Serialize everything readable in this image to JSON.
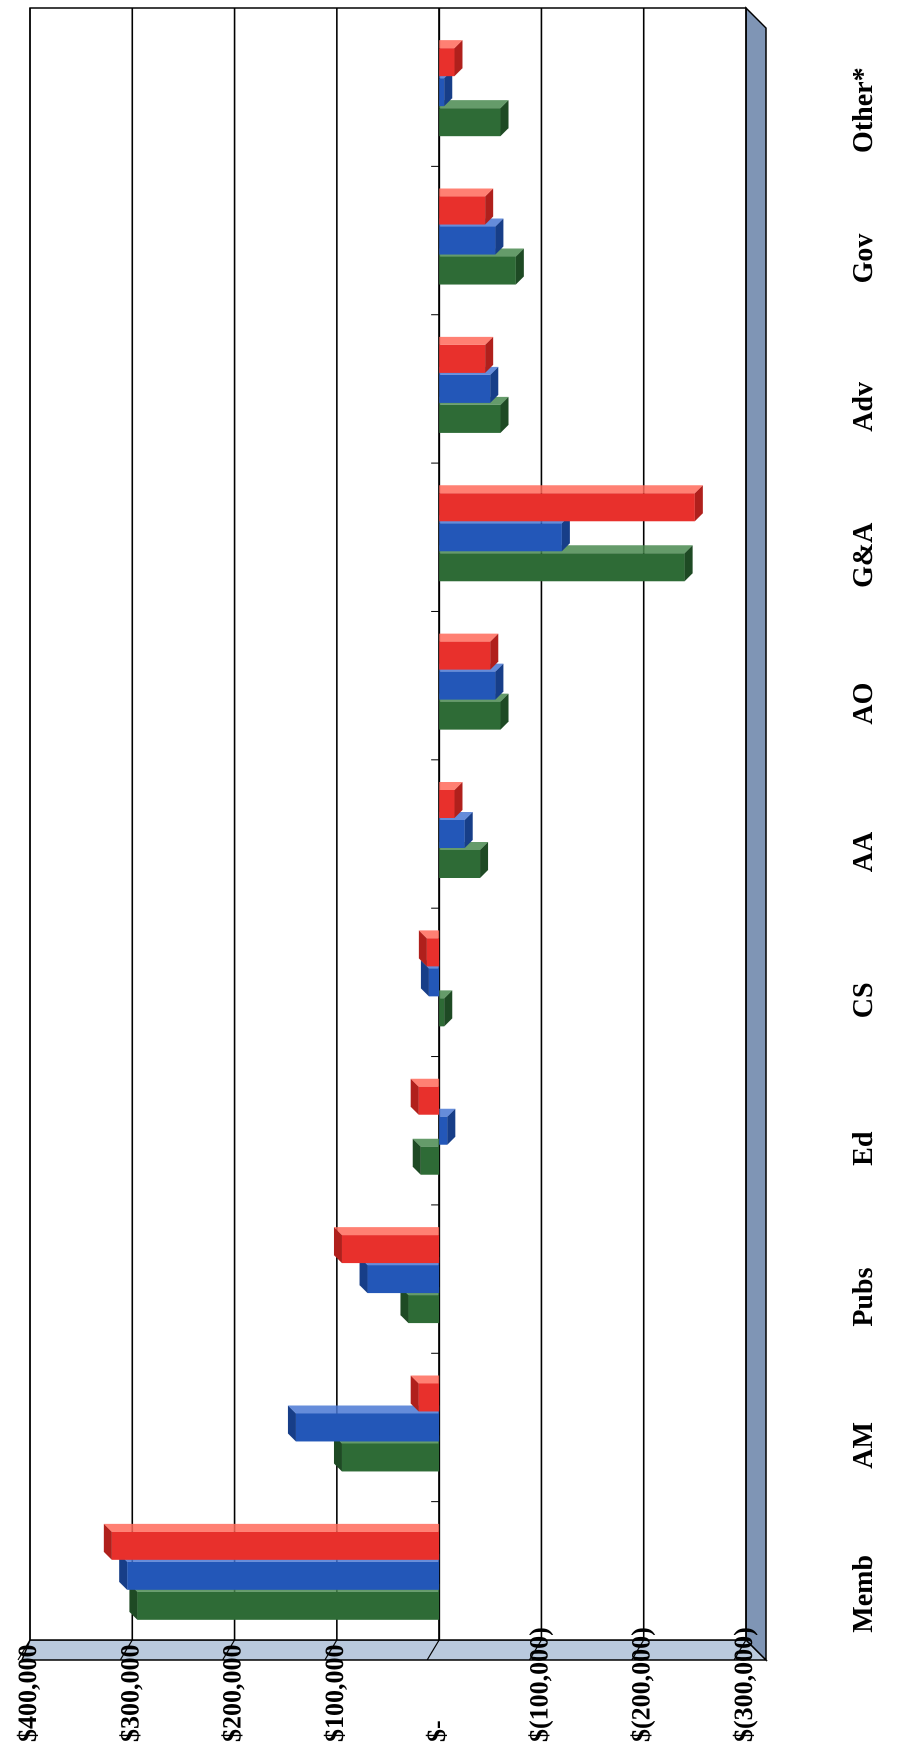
{
  "chart_data": {
    "type": "bar",
    "orientation": "rotated-90",
    "categories": [
      "Memb",
      "AM",
      "Pubs",
      "Ed",
      "CS",
      "AA",
      "AO",
      "G&A",
      "Adv",
      "Gov",
      "Other*"
    ],
    "series": [
      {
        "values": [
          295000,
          95000,
          30000,
          18000,
          -5000,
          -40000,
          -60000,
          -240000,
          -60000,
          -75000,
          -60000
        ]
      },
      {
        "values": [
          305000,
          140000,
          70000,
          -8000,
          10000,
          -25000,
          -55000,
          -120000,
          -50000,
          -55000,
          -5000
        ]
      },
      {
        "values": [
          320000,
          20000,
          95000,
          20000,
          12000,
          -15000,
          -50000,
          -250000,
          -45000,
          -45000,
          -15000
        ]
      }
    ],
    "y_tick_labels": [
      "$400,000",
      "$300,000",
      "$200,000",
      "$100,000",
      "$-",
      "$(100,000)",
      "$(200,000)",
      "$(300,000)"
    ],
    "y_ticks": [
      400000,
      300000,
      200000,
      100000,
      0,
      -100000,
      -200000,
      -300000
    ],
    "ylim": [
      -300000,
      400000
    ],
    "grid": true,
    "title": "",
    "xlabel": "",
    "ylabel": "",
    "colors": {
      "series": [
        "#2e6b36",
        "#2357b8",
        "#e8302c"
      ],
      "series_top": [
        "#4a8a50",
        "#4a78d4",
        "#ff6a5a"
      ],
      "series_side": [
        "#1e4a24",
        "#173e88",
        "#b0201c"
      ],
      "wall": "#ffffff",
      "floor": "#b9c9dd",
      "floor_side": "#7f95b5",
      "gridline": "#000000"
    }
  }
}
